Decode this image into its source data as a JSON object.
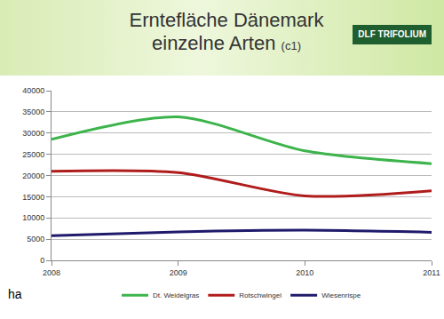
{
  "header": {
    "logo": "DLF TRIFOLIUM"
  },
  "chart_data": {
    "type": "line",
    "title": "Erntefläche Dänemark einzelne Arten",
    "subtitle": "(c1)",
    "y_label": "ha",
    "categories": [
      "2008",
      "2009",
      "2010",
      "2011"
    ],
    "series": [
      {
        "name": "Dt. Weidelgras",
        "color": "#3cb44b",
        "values": [
          28500,
          33800,
          25800,
          22800
        ]
      },
      {
        "name": "Rotschwingel",
        "color": "#b01c1c",
        "values": [
          21000,
          20700,
          15200,
          16400
        ]
      },
      {
        "name": "Wiesenrispe",
        "color": "#1f1a6b",
        "values": [
          5800,
          6700,
          7100,
          6600
        ]
      }
    ],
    "ylim": [
      0,
      40000
    ],
    "yticks": [
      0,
      5000,
      10000,
      15000,
      20000,
      25000,
      30000,
      35000,
      40000
    ],
    "grid": true,
    "legend": "bottom",
    "line_style": "smooth"
  }
}
